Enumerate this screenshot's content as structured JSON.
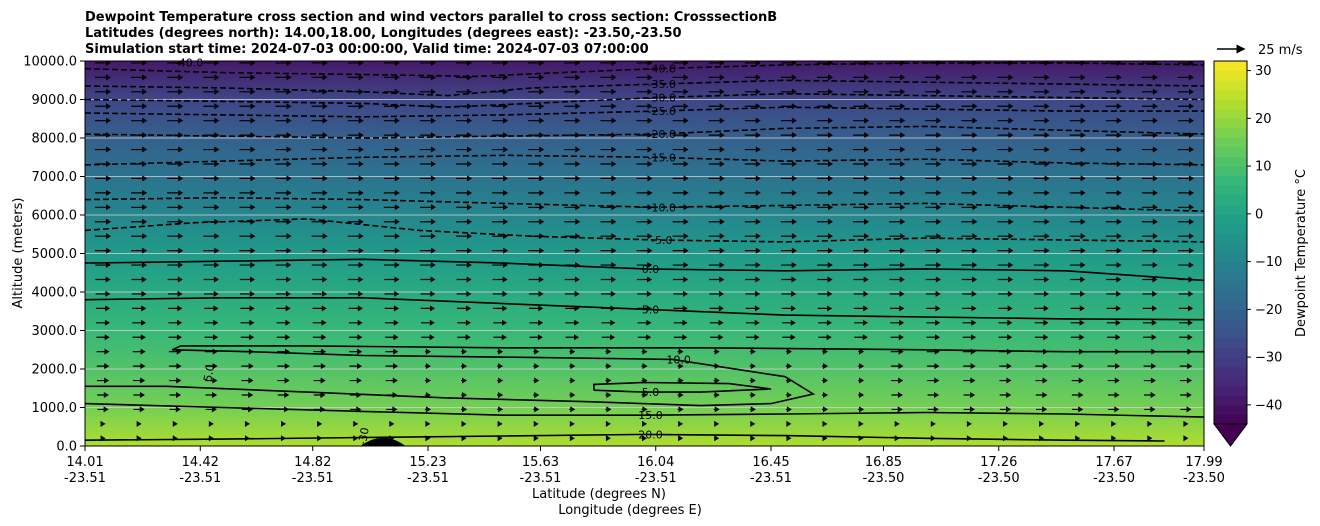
{
  "title_lines": [
    "Dewpoint Temperature cross section and wind vectors parallel to cross section: CrosssectionB",
    "Latitudes (degrees north): 14.00,18.00, Longitudes (degrees east): -23.50,-23.50",
    "Simulation start time: 2024-07-03 00:00:00, Valid time: 2024-07-03 07:00:00"
  ],
  "chart_data": {
    "type": "heatmap",
    "subtype": "filled contour cross section with line contours and wind vectors",
    "ylabel": "Altitude (meters)",
    "xlabel_line1": "Latitude (degrees N)",
    "xlabel_line2": "Longitude (degrees E)",
    "ylim": [
      0,
      10000
    ],
    "y_ticks": [
      0,
      1000,
      2000,
      3000,
      4000,
      5000,
      6000,
      7000,
      8000,
      9000,
      10000
    ],
    "y_tick_labels": [
      "0.0",
      "1000.0",
      "2000.0",
      "3000.0",
      "4000.0",
      "5000.0",
      "6000.0",
      "7000.0",
      "8000.0",
      "9000.0",
      "10000.0"
    ],
    "xlim": [
      14.01,
      17.99
    ],
    "x_ticks": [
      {
        "lat": "14.01",
        "lon": "-23.51"
      },
      {
        "lat": "14.42",
        "lon": "-23.51"
      },
      {
        "lat": "14.82",
        "lon": "-23.51"
      },
      {
        "lat": "15.23",
        "lon": "-23.51"
      },
      {
        "lat": "15.63",
        "lon": "-23.51"
      },
      {
        "lat": "16.04",
        "lon": "-23.51"
      },
      {
        "lat": "16.45",
        "lon": "-23.51"
      },
      {
        "lat": "16.85",
        "lon": "-23.50"
      },
      {
        "lat": "17.26",
        "lon": "-23.50"
      },
      {
        "lat": "17.67",
        "lon": "-23.50"
      },
      {
        "lat": "17.99",
        "lon": "-23.50"
      }
    ],
    "grid_horizontal": true,
    "colorbar": {
      "label": "Dewpoint Temperature $^\\circ$C",
      "label_display": "Dewpoint Temperature °C",
      "range": [
        -44,
        32
      ],
      "ticks": [
        -40,
        -30,
        -20,
        -10,
        0,
        10,
        20,
        30
      ],
      "tick_labels": [
        "−40",
        "−30",
        "−20",
        "−10",
        "0",
        "10",
        "20",
        "30"
      ],
      "colormap": "viridis",
      "extend": "min"
    },
    "quiver_key": {
      "label": "25 m/s",
      "value": 25
    },
    "dewpoint_levels_by_altitude": [
      {
        "alt": 0,
        "temp": 23
      },
      {
        "alt": 1000,
        "temp": 16
      },
      {
        "alt": 2000,
        "temp": 11
      },
      {
        "alt": 3000,
        "temp": 7
      },
      {
        "alt": 4000,
        "temp": 2
      },
      {
        "alt": 5000,
        "temp": -3
      },
      {
        "alt": 6000,
        "temp": -9
      },
      {
        "alt": 7000,
        "temp": -15
      },
      {
        "alt": 8000,
        "temp": -21
      },
      {
        "alt": 9000,
        "temp": -28
      },
      {
        "alt": 10000,
        "temp": -39
      }
    ],
    "contours": [
      {
        "level": 20,
        "label": "20.0",
        "style": "solid",
        "points": [
          [
            14.01,
            150
          ],
          [
            14.5,
            180
          ],
          [
            15.0,
            220
          ],
          [
            15.5,
            260
          ],
          [
            16.0,
            300
          ],
          [
            16.5,
            270
          ],
          [
            17.0,
            200
          ],
          [
            17.5,
            150
          ],
          [
            17.85,
            130
          ]
        ]
      },
      {
        "level": 15,
        "label": "15.0",
        "style": "solid",
        "points": [
          [
            14.01,
            1100
          ],
          [
            14.5,
            1000
          ],
          [
            15.0,
            900
          ],
          [
            15.5,
            800
          ],
          [
            16.0,
            800
          ],
          [
            16.5,
            830
          ],
          [
            17.0,
            870
          ],
          [
            17.5,
            830
          ],
          [
            17.99,
            750
          ]
        ]
      },
      {
        "level": 10,
        "label": "10.0",
        "style": "solid",
        "points": [
          [
            14.01,
            1550
          ],
          [
            14.3,
            1550
          ],
          [
            14.8,
            1400
          ],
          [
            15.3,
            1250
          ],
          [
            15.8,
            1150
          ],
          [
            16.2,
            1050
          ],
          [
            16.45,
            1100
          ],
          [
            16.6,
            1350
          ],
          [
            16.5,
            1800
          ],
          [
            16.1,
            2250
          ],
          [
            15.6,
            2300
          ],
          [
            15.0,
            2350
          ],
          [
            14.6,
            2450
          ],
          [
            14.32,
            2500
          ],
          [
            14.35,
            2600
          ],
          [
            14.8,
            2600
          ],
          [
            15.5,
            2550
          ],
          [
            16.2,
            2550
          ],
          [
            17.0,
            2500
          ],
          [
            17.5,
            2450
          ],
          [
            17.99,
            2450
          ]
        ]
      },
      {
        "level": 5,
        "label": "5.0",
        "style": "solid",
        "points": [
          [
            14.01,
            3800
          ],
          [
            14.5,
            3850
          ],
          [
            15.0,
            3850
          ],
          [
            15.5,
            3700
          ],
          [
            16.0,
            3550
          ],
          [
            16.5,
            3400
          ],
          [
            17.0,
            3350
          ],
          [
            17.5,
            3300
          ],
          [
            17.99,
            3280
          ]
        ]
      },
      {
        "level": 5,
        "label": "5.0",
        "style": "solid",
        "points": [
          [
            15.82,
            1450
          ],
          [
            16.0,
            1400
          ],
          [
            16.2,
            1400
          ],
          [
            16.45,
            1480
          ],
          [
            16.3,
            1620
          ],
          [
            16.0,
            1650
          ],
          [
            15.82,
            1600
          ],
          [
            15.82,
            1450
          ]
        ]
      },
      {
        "level": 0,
        "label": "0.0",
        "style": "solid",
        "points": [
          [
            14.01,
            4750
          ],
          [
            14.5,
            4800
          ],
          [
            15.0,
            4850
          ],
          [
            15.5,
            4750
          ],
          [
            16.0,
            4600
          ],
          [
            16.5,
            4550
          ],
          [
            17.0,
            4600
          ],
          [
            17.5,
            4550
          ],
          [
            17.99,
            4300
          ]
        ]
      },
      {
        "level": -5,
        "label": "-5.0",
        "style": "dashed",
        "points": [
          [
            14.01,
            5600
          ],
          [
            14.4,
            5800
          ],
          [
            14.8,
            5900
          ],
          [
            15.2,
            5600
          ],
          [
            15.6,
            5450
          ],
          [
            16.04,
            5350
          ],
          [
            16.5,
            5300
          ],
          [
            17.0,
            5400
          ],
          [
            17.5,
            5350
          ],
          [
            17.99,
            5300
          ]
        ]
      },
      {
        "level": -10,
        "label": "-10.0",
        "style": "dashed",
        "points": [
          [
            14.01,
            6400
          ],
          [
            14.5,
            6450
          ],
          [
            15.0,
            6400
          ],
          [
            15.5,
            6300
          ],
          [
            16.04,
            6200
          ],
          [
            16.5,
            6250
          ],
          [
            17.0,
            6300
          ],
          [
            17.5,
            6200
          ],
          [
            17.99,
            6100
          ]
        ]
      },
      {
        "level": -15,
        "label": "-15.0",
        "style": "dashed",
        "points": [
          [
            14.01,
            7300
          ],
          [
            14.5,
            7400
          ],
          [
            15.0,
            7500
          ],
          [
            15.5,
            7550
          ],
          [
            16.04,
            7500
          ],
          [
            16.5,
            7400
          ],
          [
            17.0,
            7450
          ],
          [
            17.5,
            7350
          ],
          [
            17.99,
            7300
          ]
        ]
      },
      {
        "level": -20,
        "label": "-20.0",
        "style": "dashed",
        "points": [
          [
            14.01,
            8100
          ],
          [
            14.5,
            8050
          ],
          [
            15.0,
            8000
          ],
          [
            15.5,
            8050
          ],
          [
            16.04,
            8100
          ],
          [
            16.5,
            8250
          ],
          [
            17.0,
            8300
          ],
          [
            17.5,
            8200
          ],
          [
            17.99,
            8100
          ]
        ]
      },
      {
        "level": -25,
        "label": "-25.0",
        "style": "dashed",
        "points": [
          [
            14.01,
            8650
          ],
          [
            14.5,
            8600
          ],
          [
            15.0,
            8550
          ],
          [
            15.5,
            8600
          ],
          [
            16.04,
            8700
          ],
          [
            16.5,
            8800
          ],
          [
            17.0,
            8750
          ],
          [
            17.5,
            8700
          ],
          [
            17.99,
            8700
          ]
        ]
      },
      {
        "level": -30,
        "label": "-30.0",
        "style": "dashed",
        "points": [
          [
            14.01,
            9000
          ],
          [
            14.5,
            8950
          ],
          [
            15.0,
            8900
          ],
          [
            15.3,
            8800
          ],
          [
            15.6,
            8900
          ],
          [
            16.04,
            9050
          ],
          [
            16.5,
            9150
          ],
          [
            17.0,
            9100
          ],
          [
            17.5,
            9050
          ],
          [
            17.99,
            9000
          ]
        ]
      },
      {
        "level": -35,
        "label": "-35.0",
        "style": "dashed",
        "points": [
          [
            14.01,
            9350
          ],
          [
            14.5,
            9300
          ],
          [
            15.0,
            9200
          ],
          [
            15.3,
            9100
          ],
          [
            15.6,
            9300
          ],
          [
            16.04,
            9400
          ],
          [
            16.5,
            9500
          ],
          [
            17.0,
            9450
          ],
          [
            17.5,
            9400
          ],
          [
            17.99,
            9350
          ]
        ]
      },
      {
        "level": -40,
        "label": "-40.0",
        "style": "dashed",
        "points": [
          [
            14.01,
            9800
          ],
          [
            14.5,
            9700
          ],
          [
            15.0,
            9650
          ],
          [
            15.4,
            9600
          ],
          [
            15.7,
            9700
          ],
          [
            16.04,
            9800
          ],
          [
            16.5,
            9900
          ],
          [
            17.0,
            9950
          ],
          [
            17.5,
            9950
          ],
          [
            17.99,
            9900
          ]
        ]
      }
    ],
    "extra_contour_labels": [
      {
        "label": "5.0",
        "lat": 14.45,
        "alt": 1900,
        "rotated": true
      },
      {
        "label": "-40.0",
        "lat": 14.38,
        "alt": 9960
      },
      {
        "label": "-30",
        "lat": 15.0,
        "alt": 250,
        "rotated": true
      }
    ],
    "terrain": {
      "lat_center": 15.07,
      "half_width": 0.08,
      "peak_alt": 220
    }
  }
}
